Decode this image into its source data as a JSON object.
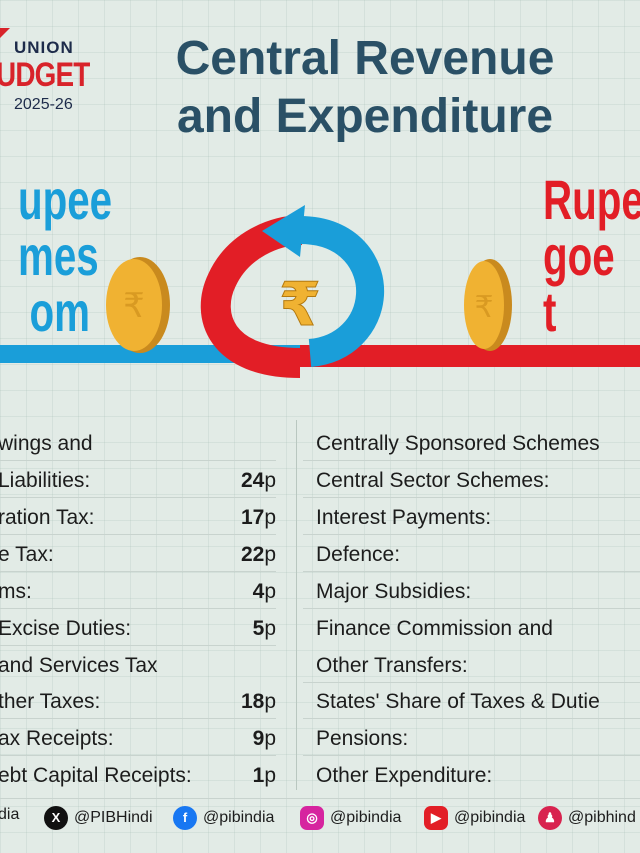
{
  "logo": {
    "line1": "UNION",
    "line2": "UDGET",
    "line3": "2025-26"
  },
  "title": {
    "line1": "Central Revenue",
    "line2": "and Expenditure"
  },
  "left_heading": [
    "upee",
    "mes",
    "om"
  ],
  "right_heading": [
    "Rupe",
    "goe",
    "t"
  ],
  "colors": {
    "blue": "#1a9ed9",
    "red": "#e21e26",
    "title": "#2a5066",
    "coin": "#f0b232"
  },
  "icons": {
    "center": "rupee-symbol",
    "coins": "coin-icon"
  },
  "rupee_symbol": "₹",
  "left_rows": [
    {
      "label": "wings and",
      "value": "",
      "unit": ""
    },
    {
      "label": "Liabilities:",
      "value": "24",
      "unit": "p"
    },
    {
      "label": "ration Tax:",
      "value": "17",
      "unit": "p"
    },
    {
      "label": "e Tax:",
      "value": "22",
      "unit": "p"
    },
    {
      "label": "ms:",
      "value": "4",
      "unit": "p"
    },
    {
      "label": " Excise Duties:",
      "value": "5",
      "unit": "p"
    },
    {
      "label": " and Services Tax",
      "value": "",
      "unit": ""
    },
    {
      "label": "ther Taxes:",
      "value": "18",
      "unit": "p"
    },
    {
      "label": "ax Receipts:",
      "value": "9",
      "unit": "p"
    },
    {
      "label": "ebt Capital Receipts:",
      "value": "1",
      "unit": "p"
    }
  ],
  "right_rows": [
    {
      "label": "Centrally Sponsored Schemes"
    },
    {
      "label": "Central Sector Schemes:"
    },
    {
      "label": "Interest Payments:"
    },
    {
      "label": "Defence:"
    },
    {
      "label": "Major Subsidies:"
    },
    {
      "label": "Finance Commission and"
    },
    {
      "label": "Other Transfers:"
    },
    {
      "label": "States' Share of Taxes & Dutie"
    },
    {
      "label": "Pensions:"
    },
    {
      "label": "Other Expenditure:"
    }
  ],
  "footer": [
    {
      "handle": "dia",
      "icon": "partial-icon"
    },
    {
      "handle": "@PIBHindi",
      "icon": "x-icon"
    },
    {
      "handle": "@pibindia",
      "icon": "facebook-icon"
    },
    {
      "handle": "@pibindia",
      "icon": "instagram-icon"
    },
    {
      "handle": "@pibindia",
      "icon": "youtube-icon"
    },
    {
      "handle": "@pibhind",
      "icon": "kooapp-icon"
    }
  ]
}
